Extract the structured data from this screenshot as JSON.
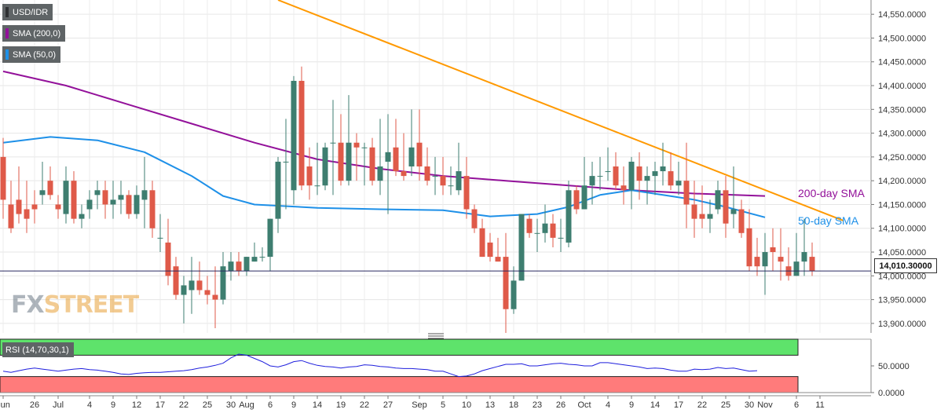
{
  "legend": {
    "symbol": "USD/IDR",
    "sma200": "SMA (200,0)",
    "sma50": "SMA (50,0)"
  },
  "colors": {
    "bull": "#3e7e70",
    "bear": "#df5a49",
    "sma200": "#93119a",
    "sma50": "#1e90e8",
    "trendline": "#ff9900",
    "rsi_line": "#1f1fdd",
    "rsi_over": "#5ee36b",
    "rsi_under": "#ff7b7b"
  },
  "annotations": {
    "sma200_label": "200-day SMA",
    "sma50_label": "50-day SMA"
  },
  "current_price": "14,010.30000",
  "watermark": {
    "fx": "FX",
    "street": "STREET"
  },
  "rsi_legend": "RSI (14,70,30,1)",
  "chart_data": [
    {
      "type": "candlestick",
      "symbol": "USD/IDR",
      "ylim": [
        13880,
        14580
      ],
      "yticks": [
        "14,550.0000",
        "14,500.0000",
        "14,450.0000",
        "14,400.0000",
        "14,350.0000",
        "14,300.0000",
        "14,250.0000",
        "14,200.0000",
        "14,150.0000",
        "14,100.0000",
        "14,050.0000",
        "14,000.0000",
        "13,950.0000",
        "13,900.0000"
      ],
      "ytick_values": [
        14550,
        14500,
        14450,
        14400,
        14350,
        14300,
        14250,
        14200,
        14150,
        14100,
        14050,
        14000,
        13950,
        13900
      ],
      "xticks": [
        {
          "label": "Jun",
          "i": 0
        },
        {
          "label": "26",
          "i": 4
        },
        {
          "label": "Jul",
          "i": 7
        },
        {
          "label": "4",
          "i": 11
        },
        {
          "label": "9",
          "i": 14
        },
        {
          "label": "12",
          "i": 17
        },
        {
          "label": "17",
          "i": 20
        },
        {
          "label": "22",
          "i": 23
        },
        {
          "label": "25",
          "i": 26
        },
        {
          "label": "30",
          "i": 29
        },
        {
          "label": "Aug",
          "i": 31
        },
        {
          "label": "6",
          "i": 34
        },
        {
          "label": "9",
          "i": 37
        },
        {
          "label": "14",
          "i": 40
        },
        {
          "label": "19",
          "i": 43
        },
        {
          "label": "22",
          "i": 46
        },
        {
          "label": "27",
          "i": 49
        },
        {
          "label": "Sep",
          "i": 53
        },
        {
          "label": "5",
          "i": 56
        },
        {
          "label": "10",
          "i": 59
        },
        {
          "label": "13",
          "i": 62
        },
        {
          "label": "18",
          "i": 65
        },
        {
          "label": "23",
          "i": 68
        },
        {
          "label": "26",
          "i": 71
        },
        {
          "label": "Oct",
          "i": 74
        },
        {
          "label": "4",
          "i": 77
        },
        {
          "label": "9",
          "i": 80
        },
        {
          "label": "14",
          "i": 83
        },
        {
          "label": "17",
          "i": 86
        },
        {
          "label": "22",
          "i": 89
        },
        {
          "label": "25",
          "i": 92
        },
        {
          "label": "30",
          "i": 95
        },
        {
          "label": "Nov",
          "i": 97
        },
        {
          "label": "6",
          "i": 101
        },
        {
          "label": "11",
          "i": 104
        }
      ],
      "candles": [
        [
          14250,
          14290,
          14160,
          14120
        ],
        [
          14150,
          14200,
          14100,
          14090
        ],
        [
          14160,
          14230,
          14130,
          14110
        ],
        [
          14140,
          14200,
          14120,
          14090
        ],
        [
          14150,
          14180,
          14140,
          14110
        ],
        [
          14170,
          14240,
          14180,
          14150
        ],
        [
          14200,
          14230,
          14170,
          14160
        ],
        [
          14150,
          14170,
          14140,
          14120
        ],
        [
          14130,
          14230,
          14200,
          14110
        ],
        [
          14200,
          14220,
          14120,
          14110
        ],
        [
          14120,
          14150,
          14130,
          14100
        ],
        [
          14140,
          14180,
          14160,
          14120
        ],
        [
          14170,
          14200,
          14180,
          14140
        ],
        [
          14180,
          14200,
          14150,
          14120
        ],
        [
          14150,
          14200,
          14160,
          14120
        ],
        [
          14160,
          14200,
          14170,
          14130
        ],
        [
          14170,
          14180,
          14130,
          14120
        ],
        [
          14130,
          14190,
          14170,
          14120
        ],
        [
          14160,
          14250,
          14180,
          14100
        ],
        [
          14180,
          14200,
          14100,
          14080
        ],
        [
          14080,
          14130,
          14080,
          14050
        ],
        [
          14070,
          14120,
          14000,
          13980
        ],
        [
          14020,
          14040,
          13960,
          13950
        ],
        [
          13960,
          14000,
          13980,
          13900
        ],
        [
          13970,
          14040,
          13990,
          13920
        ],
        [
          13990,
          14030,
          13970,
          13960
        ],
        [
          13970,
          14000,
          13960,
          13940
        ],
        [
          13960,
          14020,
          13950,
          13890
        ],
        [
          13950,
          14050,
          14020,
          13940
        ],
        [
          14010,
          14050,
          14030,
          13990
        ],
        [
          14030,
          14050,
          14010,
          14000
        ],
        [
          14010,
          14040,
          14040,
          14000
        ],
        [
          14030,
          14070,
          14040,
          14030
        ],
        [
          14040,
          14060,
          14040,
          14030
        ],
        [
          14040,
          14120,
          14120,
          14010
        ],
        [
          14120,
          14250,
          14240,
          14090
        ],
        [
          14240,
          14330,
          14240,
          14140
        ],
        [
          14180,
          14420,
          14410,
          14150
        ],
        [
          14410,
          14440,
          14190,
          14180
        ],
        [
          14230,
          14270,
          14190,
          14160
        ],
        [
          14190,
          14280,
          14190,
          14170
        ],
        [
          14190,
          14280,
          14270,
          14180
        ],
        [
          14280,
          14370,
          14280,
          14170
        ],
        [
          14280,
          14340,
          14200,
          14190
        ],
        [
          14200,
          14380,
          14280,
          14190
        ],
        [
          14280,
          14300,
          14270,
          14200
        ],
        [
          14270,
          14280,
          14270,
          14190
        ],
        [
          14270,
          14290,
          14200,
          14190
        ],
        [
          14200,
          14330,
          14230,
          14170
        ],
        [
          14240,
          14340,
          14260,
          14130
        ],
        [
          14270,
          14330,
          14220,
          14210
        ],
        [
          14220,
          14300,
          14210,
          14200
        ],
        [
          14230,
          14350,
          14270,
          14210
        ],
        [
          14280,
          14350,
          14230,
          14200
        ],
        [
          14230,
          14270,
          14200,
          14190
        ],
        [
          14210,
          14250,
          14210,
          14170
        ],
        [
          14210,
          14250,
          14190,
          14170
        ],
        [
          14190,
          14230,
          14190,
          14170
        ],
        [
          14180,
          14280,
          14220,
          14170
        ],
        [
          14210,
          14250,
          14140,
          14120
        ],
        [
          14140,
          14150,
          14100,
          14090
        ],
        [
          14100,
          14120,
          14040,
          14040
        ],
        [
          14070,
          14090,
          14040,
          14030
        ],
        [
          14040,
          14080,
          14030,
          14030
        ],
        [
          14040,
          14090,
          13930,
          13880
        ],
        [
          13930,
          14020,
          13990,
          13920
        ],
        [
          13990,
          14110,
          14130,
          13990
        ],
        [
          14120,
          14130,
          14090,
          14080
        ],
        [
          14090,
          14120,
          14090,
          14050
        ],
        [
          14090,
          14150,
          14110,
          14070
        ],
        [
          14110,
          14130,
          14080,
          14060
        ],
        [
          14080,
          14120,
          14080,
          14050
        ],
        [
          14070,
          14200,
          14180,
          14060
        ],
        [
          14180,
          14190,
          14140,
          14130
        ],
        [
          14140,
          14250,
          14190,
          14140
        ],
        [
          14190,
          14240,
          14210,
          14150
        ],
        [
          14210,
          14250,
          14210,
          14180
        ],
        [
          14220,
          14270,
          14220,
          14200
        ],
        [
          14230,
          14260,
          14190,
          14180
        ],
        [
          14190,
          14230,
          14180,
          14150
        ],
        [
          14180,
          14250,
          14240,
          14140
        ],
        [
          14230,
          14260,
          14200,
          14160
        ],
        [
          14200,
          14230,
          14210,
          14150
        ],
        [
          14210,
          14240,
          14220,
          14170
        ],
        [
          14220,
          14280,
          14230,
          14190
        ],
        [
          14220,
          14260,
          14190,
          14180
        ],
        [
          14190,
          14240,
          14200,
          14170
        ],
        [
          14200,
          14280,
          14150,
          14100
        ],
        [
          14150,
          14200,
          14120,
          14080
        ],
        [
          14130,
          14190,
          14120,
          14100
        ],
        [
          14120,
          14160,
          14130,
          14090
        ],
        [
          14140,
          14200,
          14180,
          14130
        ],
        [
          14180,
          14210,
          14110,
          14080
        ],
        [
          14130,
          14230,
          14140,
          14100
        ],
        [
          14140,
          14160,
          14090,
          14080
        ],
        [
          14100,
          14140,
          14020,
          14010
        ],
        [
          14040,
          14080,
          14020,
          14000
        ],
        [
          14020,
          14090,
          14050,
          13960
        ],
        [
          14060,
          14100,
          14050,
          14010
        ],
        [
          14040,
          14100,
          14030,
          13990
        ],
        [
          14020,
          14060,
          14000,
          13990
        ],
        [
          14000,
          14090,
          14030,
          14000
        ],
        [
          14030,
          14120,
          14050,
          14000
        ],
        [
          14040,
          14070,
          14010,
          14000
        ]
      ],
      "sma200": [
        [
          0,
          14430
        ],
        [
          8,
          14400
        ],
        [
          16,
          14360
        ],
        [
          24,
          14320
        ],
        [
          32,
          14280
        ],
        [
          40,
          14245
        ],
        [
          48,
          14225
        ],
        [
          56,
          14210
        ],
        [
          64,
          14200
        ],
        [
          72,
          14190
        ],
        [
          80,
          14180
        ],
        [
          88,
          14173
        ],
        [
          97,
          14168
        ]
      ],
      "sma50": [
        [
          0,
          14280
        ],
        [
          6,
          14292
        ],
        [
          12,
          14285
        ],
        [
          18,
          14260
        ],
        [
          24,
          14210
        ],
        [
          28,
          14168
        ],
        [
          32,
          14150
        ],
        [
          40,
          14143
        ],
        [
          48,
          14140
        ],
        [
          56,
          14138
        ],
        [
          62,
          14125
        ],
        [
          68,
          14130
        ],
        [
          72,
          14145
        ],
        [
          76,
          14170
        ],
        [
          80,
          14180
        ],
        [
          84,
          14170
        ],
        [
          88,
          14160
        ],
        [
          92,
          14145
        ],
        [
          97,
          14123
        ]
      ],
      "trendline": [
        [
          35,
          14580
        ],
        [
          107,
          14116
        ]
      ],
      "current_price": 14010.3
    },
    {
      "type": "line",
      "name": "RSI (14,70,30,1)",
      "ylim": [
        0,
        100
      ],
      "yticks": [
        "50.0000",
        "0.0000"
      ],
      "ytick_values": [
        50,
        0
      ],
      "overbought": 70,
      "oversold": 30,
      "values": [
        40,
        38,
        41,
        44,
        46,
        44,
        42,
        40,
        42,
        44,
        45,
        43,
        42,
        40,
        38,
        35,
        34,
        36,
        37,
        38,
        38,
        39,
        40,
        41,
        43,
        46,
        48,
        51,
        55,
        65,
        72,
        70,
        64,
        58,
        50,
        48,
        52,
        58,
        60,
        55,
        51,
        49,
        48,
        46,
        48,
        49,
        52,
        51,
        49,
        48,
        46,
        45,
        45,
        44,
        43,
        40,
        40,
        35,
        30,
        31,
        35,
        41,
        45,
        49,
        53,
        53,
        54,
        50,
        50,
        52,
        54,
        55,
        53,
        52,
        50,
        50,
        56,
        56,
        54,
        52,
        50,
        48,
        45,
        46,
        45,
        42,
        40,
        40,
        44,
        43,
        44,
        47,
        45,
        46,
        43,
        40,
        41
      ]
    }
  ]
}
